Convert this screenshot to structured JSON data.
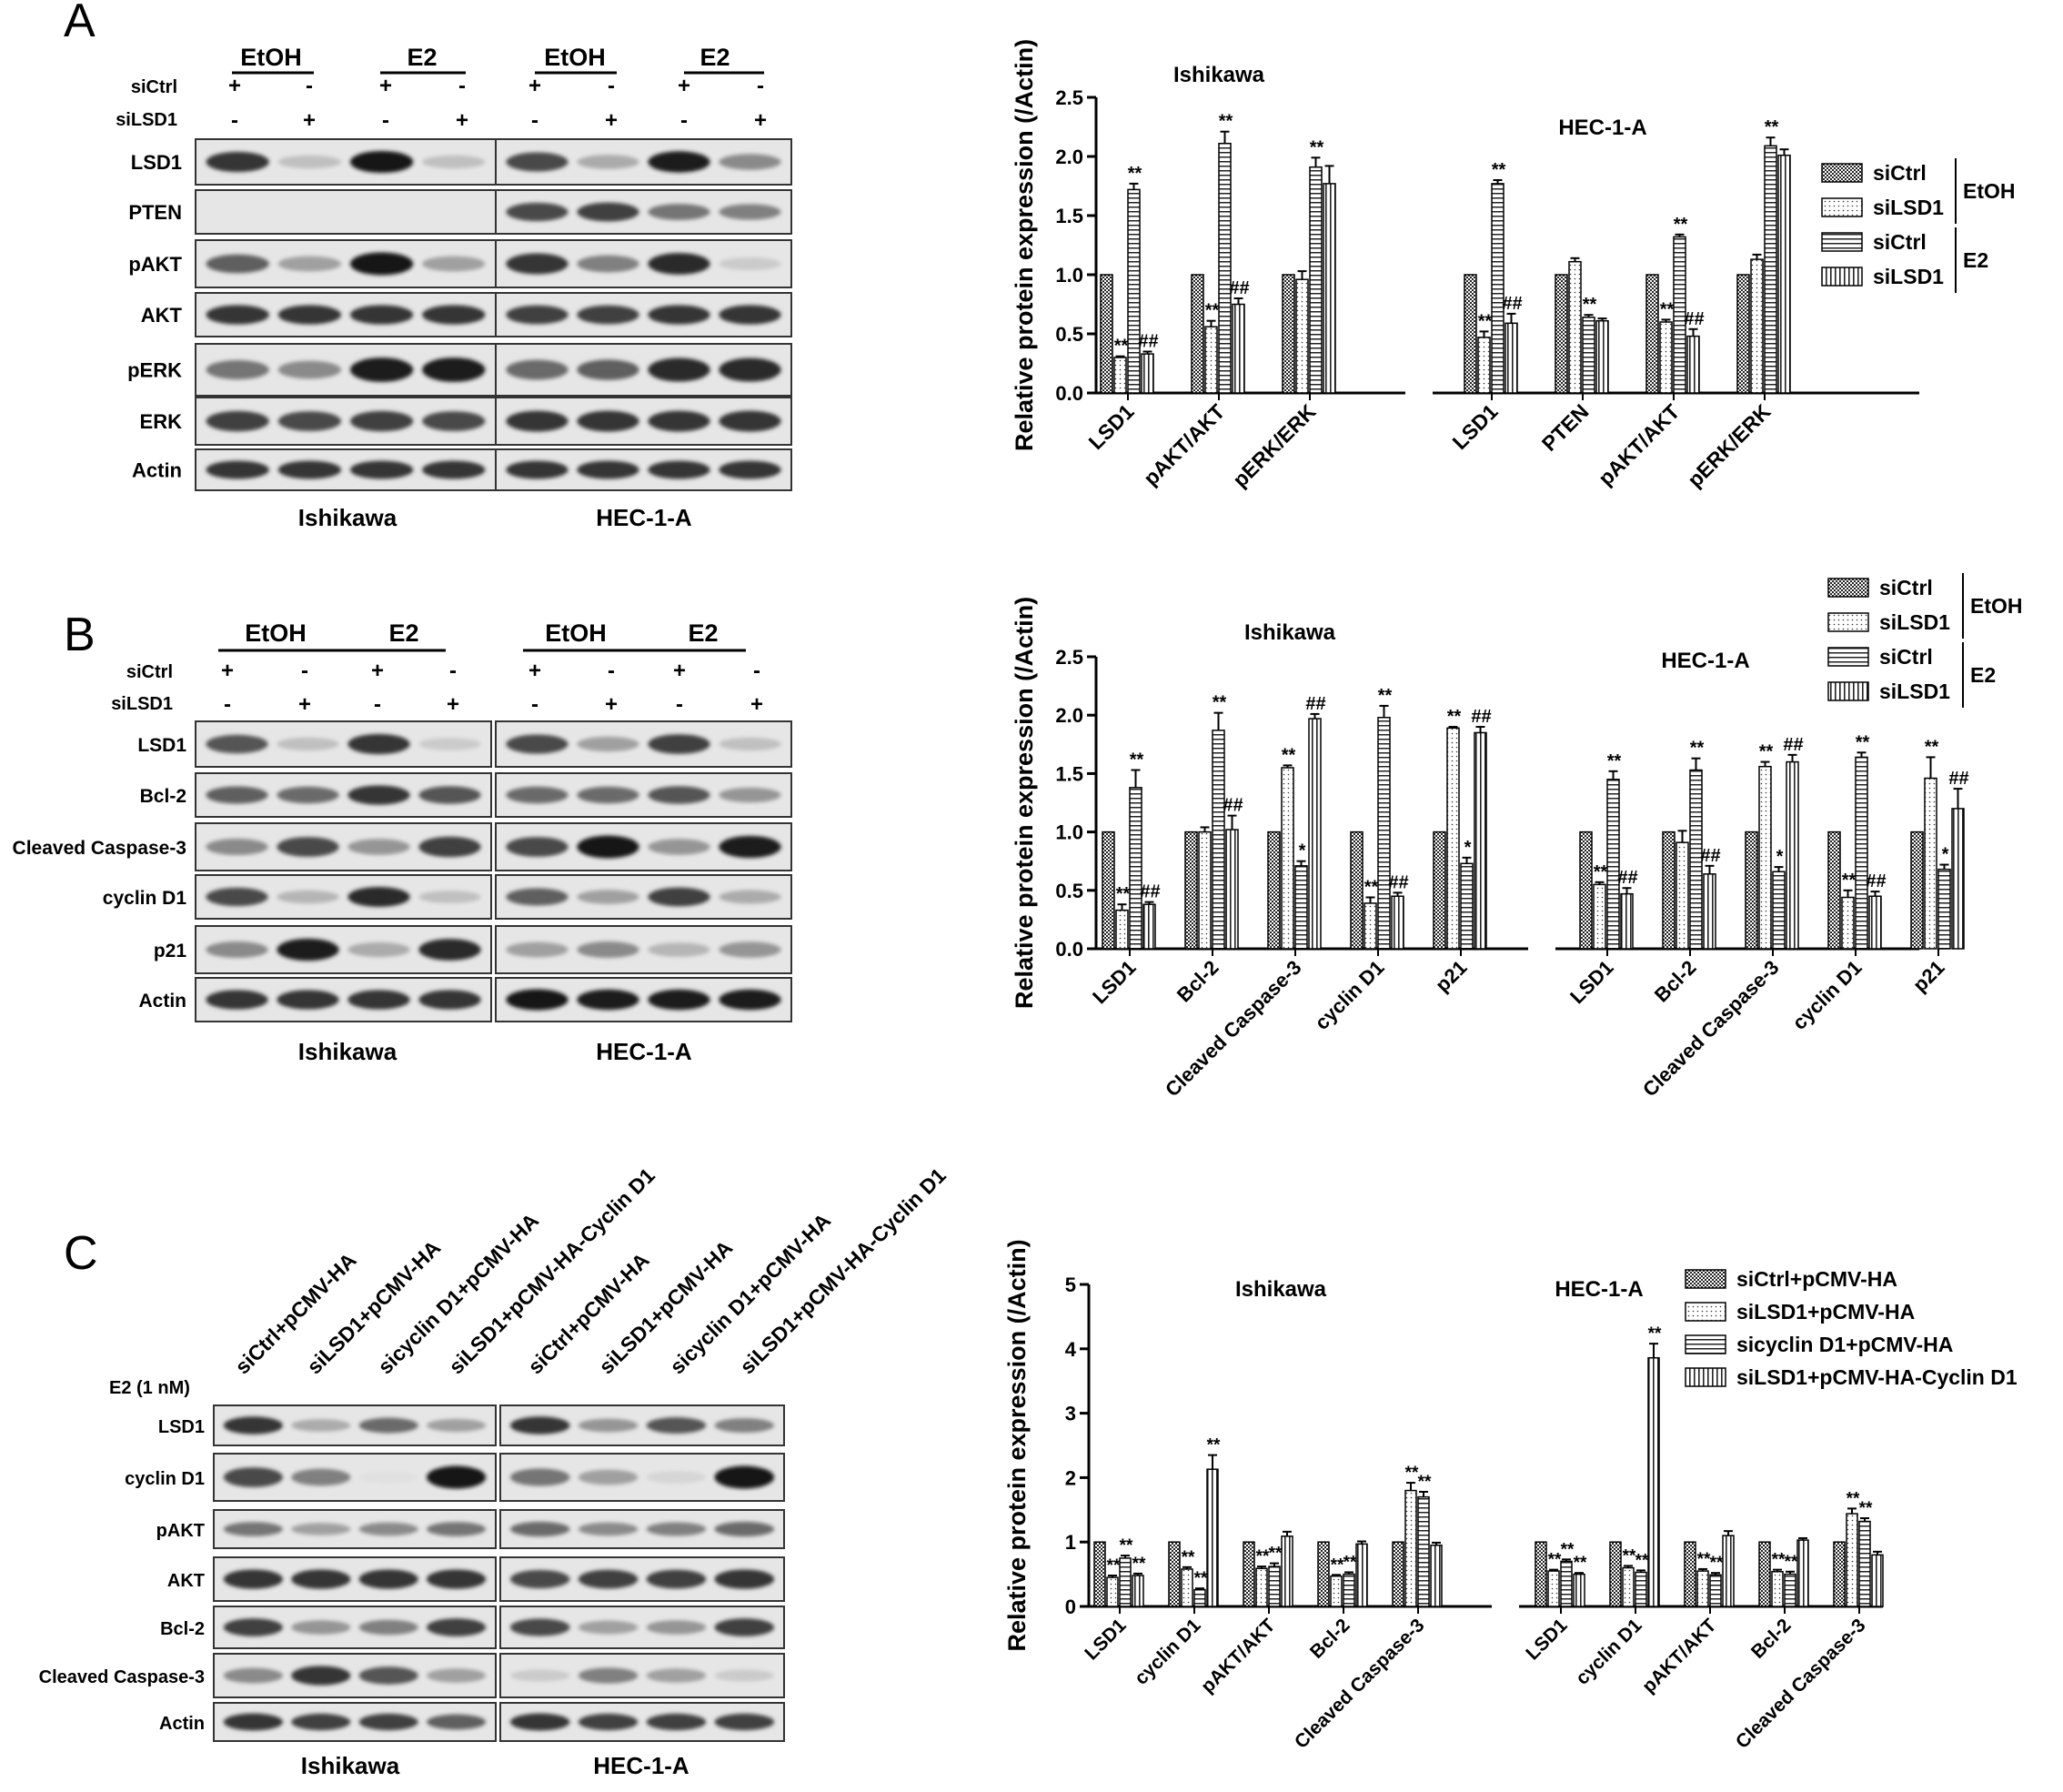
{
  "panel_labels": [
    "A",
    "B",
    "C"
  ],
  "blots": {
    "A": {
      "treat_labels": [
        "EtOH",
        "E2",
        "EtOH",
        "E2"
      ],
      "row_labels": [
        "siCtrl",
        "siLSD1"
      ],
      "signs": [
        [
          "+",
          "-",
          "+",
          "-"
        ],
        [
          "-",
          "+",
          "-",
          "+"
        ]
      ],
      "proteins": [
        "LSD1",
        "PTEN",
        "pAKT",
        "AKT",
        "pERK",
        "ERK",
        "Actin"
      ],
      "cells": [
        "Ishikawa",
        "HEC-1-A"
      ]
    },
    "B": {
      "treat_labels": [
        "EtOH",
        "E2",
        "EtOH",
        "E2"
      ],
      "row_labels": [
        "siCtrl",
        "siLSD1"
      ],
      "signs": [
        [
          "+",
          "-",
          "+",
          "-"
        ],
        [
          "-",
          "+",
          "-",
          "+"
        ]
      ],
      "proteins": [
        "LSD1",
        "Bcl-2",
        "Cleaved Caspase-3",
        "cyclin D1",
        "p21",
        "Actin"
      ],
      "cells": [
        "Ishikawa",
        "HEC-1-A"
      ]
    },
    "C": {
      "lane_labels": [
        "siCtrl+pCMV-HA",
        "siLSD1+pCMV-HA",
        "sicyclin D1+pCMV-HA",
        "siLSD1+pCMV-HA-Cyclin D1"
      ],
      "treatment": "E2 (1 nM)",
      "proteins": [
        "LSD1",
        "cyclin D1",
        "pAKT",
        "AKT",
        "Bcl-2",
        "Cleaved Caspase-3",
        "Actin"
      ],
      "cells": [
        "Ishikawa",
        "HEC-1-A"
      ]
    }
  },
  "chart_data": [
    {
      "type": "bar",
      "panel": "A",
      "ylabel": "Relative protein expression (/Actin)",
      "ylim": [
        0,
        2.5
      ],
      "yticks": [
        "0.0",
        "0.5",
        "1.0",
        "1.5",
        "2.0",
        "2.5"
      ],
      "group_titles": [
        "Ishikawa",
        "HEC-1-A"
      ],
      "legend": {
        "series": [
          "siCtrl",
          "siLSD1",
          "siCtrl",
          "siLSD1"
        ],
        "brackets": [
          "EtOH",
          "E2"
        ]
      },
      "groups": [
        {
          "name": "Ishikawa",
          "categories": [
            "LSD1",
            "pAKT/AKT",
            "pERK/ERK"
          ],
          "values": [
            [
              1.0,
              0.3,
              1.72,
              0.33
            ],
            [
              1.0,
              0.56,
              2.11,
              0.75
            ],
            [
              1.0,
              0.96,
              1.91,
              1.77
            ]
          ],
          "errors": [
            [
              0,
              0.01,
              0.05,
              0.02
            ],
            [
              0,
              0.05,
              0.1,
              0.05
            ],
            [
              0,
              0.07,
              0.08,
              0.15
            ]
          ],
          "marks": [
            [
              "",
              "**",
              "**",
              "##"
            ],
            [
              "",
              "**",
              "**",
              "##"
            ],
            [
              "",
              "",
              "**",
              ""
            ]
          ]
        },
        {
          "name": "HEC-1-A",
          "categories": [
            "LSD1",
            "PTEN",
            "pAKT/AKT",
            "pERK/ERK"
          ],
          "values": [
            [
              1.0,
              0.47,
              1.77,
              0.59
            ],
            [
              1.0,
              1.11,
              0.64,
              0.61
            ],
            [
              1.0,
              0.6,
              1.32,
              0.48
            ],
            [
              1.0,
              1.13,
              2.09,
              2.01
            ]
          ],
          "errors": [
            [
              0,
              0.05,
              0.03,
              0.08
            ],
            [
              0,
              0.03,
              0.02,
              0.02
            ],
            [
              0,
              0.02,
              0.02,
              0.06
            ],
            [
              0,
              0.04,
              0.07,
              0.05
            ]
          ],
          "marks": [
            [
              "",
              "**",
              "**",
              "##"
            ],
            [
              "",
              "",
              "**",
              ""
            ],
            [
              "",
              "**",
              "**",
              "##"
            ],
            [
              "",
              "",
              "**",
              ""
            ]
          ]
        }
      ]
    },
    {
      "type": "bar",
      "panel": "B",
      "ylabel": "Relative protein expression (/Actin)",
      "ylim": [
        0,
        2.5
      ],
      "yticks": [
        "0.0",
        "0.5",
        "1.0",
        "1.5",
        "2.0",
        "2.5"
      ],
      "group_titles": [
        "Ishikawa",
        "HEC-1-A"
      ],
      "legend": {
        "series": [
          "siCtrl",
          "siLSD1",
          "siCtrl",
          "siLSD1"
        ],
        "brackets": [
          "EtOH",
          "E2"
        ]
      },
      "groups": [
        {
          "name": "Ishikawa",
          "categories": [
            "LSD1",
            "Bcl-2",
            "Cleaved Caspase-3",
            "cyclin D1",
            "p21"
          ],
          "values": [
            [
              1.0,
              0.33,
              1.38,
              0.38
            ],
            [
              1.0,
              1.0,
              1.87,
              1.02
            ],
            [
              1.0,
              1.55,
              0.71,
              1.97
            ],
            [
              1.0,
              0.39,
              1.98,
              0.45
            ],
            [
              1.0,
              1.89,
              0.73,
              1.85
            ]
          ],
          "errors": [
            [
              0,
              0.05,
              0.15,
              0.02
            ],
            [
              0,
              0.04,
              0.15,
              0.12
            ],
            [
              0,
              0.02,
              0.04,
              0.04
            ],
            [
              0,
              0.05,
              0.1,
              0.03
            ],
            [
              0,
              0.01,
              0.05,
              0.05
            ]
          ],
          "marks": [
            [
              "",
              "**",
              "**",
              "##"
            ],
            [
              "",
              "",
              "**",
              "##"
            ],
            [
              "",
              "**",
              "*",
              "##"
            ],
            [
              "",
              "**",
              "**",
              "##"
            ],
            [
              "",
              "**",
              "*",
              "##"
            ]
          ]
        },
        {
          "name": "HEC-1-A",
          "categories": [
            "LSD1",
            "Bcl-2",
            "Cleaved Caspase-3",
            "cyclin D1",
            "p21"
          ],
          "values": [
            [
              1.0,
              0.55,
              1.45,
              0.47
            ],
            [
              1.0,
              0.91,
              1.53,
              0.64
            ],
            [
              1.0,
              1.56,
              0.66,
              1.6
            ],
            [
              1.0,
              0.44,
              1.64,
              0.45
            ],
            [
              1.0,
              1.46,
              0.68,
              1.2
            ]
          ],
          "errors": [
            [
              0,
              0.02,
              0.07,
              0.05
            ],
            [
              0,
              0.1,
              0.1,
              0.07
            ],
            [
              0,
              0.04,
              0.04,
              0.06
            ],
            [
              0,
              0.06,
              0.04,
              0.04
            ],
            [
              0,
              0.18,
              0.04,
              0.17
            ]
          ],
          "marks": [
            [
              "",
              "**",
              "**",
              "##"
            ],
            [
              "",
              "",
              "**",
              "##"
            ],
            [
              "",
              "**",
              "*",
              "##"
            ],
            [
              "",
              "**",
              "**",
              "##"
            ],
            [
              "",
              "**",
              "*",
              "##"
            ]
          ]
        }
      ]
    },
    {
      "type": "bar",
      "panel": "C",
      "ylabel": "Relative protein expression (/Actin)",
      "ylim": [
        0,
        5
      ],
      "yticks": [
        "0",
        "1",
        "2",
        "3",
        "4",
        "5"
      ],
      "group_titles": [
        "Ishikawa",
        "HEC-1-A"
      ],
      "legend": {
        "series": [
          "siCtrl+pCMV-HA",
          "siLSD1+pCMV-HA",
          "sicyclin D1+pCMV-HA",
          "siLSD1+pCMV-HA-Cyclin D1"
        ],
        "brackets": []
      },
      "groups": [
        {
          "name": "Ishikawa",
          "categories": [
            "LSD1",
            "cyclin D1",
            "pAKT/AKT",
            "Bcl-2",
            "Cleaved Caspase-3"
          ],
          "values": [
            [
              1.0,
              0.45,
              0.75,
              0.48
            ],
            [
              1.0,
              0.58,
              0.26,
              2.13
            ],
            [
              1.0,
              0.59,
              0.62,
              1.09
            ],
            [
              1.0,
              0.47,
              0.5,
              0.97
            ],
            [
              1.0,
              1.8,
              1.7,
              0.95
            ]
          ],
          "errors": [
            [
              0,
              0.03,
              0.04,
              0.03
            ],
            [
              0,
              0.03,
              0.02,
              0.22
            ],
            [
              0,
              0.03,
              0.05,
              0.07
            ],
            [
              0,
              0.02,
              0.03,
              0.04
            ],
            [
              0,
              0.12,
              0.08,
              0.04
            ]
          ],
          "marks": [
            [
              "",
              "**",
              "**",
              "**"
            ],
            [
              "",
              "**",
              "**",
              "**"
            ],
            [
              "",
              "**",
              "**",
              ""
            ],
            [
              "",
              "**",
              "**",
              ""
            ],
            [
              "",
              "**",
              "**",
              ""
            ]
          ]
        },
        {
          "name": "HEC-1-A",
          "categories": [
            "LSD1",
            "cyclin D1",
            "pAKT/AKT",
            "Bcl-2",
            "Cleaved Caspase-3"
          ],
          "values": [
            [
              1.0,
              0.55,
              0.7,
              0.5
            ],
            [
              1.0,
              0.6,
              0.53,
              3.86
            ],
            [
              1.0,
              0.55,
              0.49,
              1.1
            ],
            [
              1.0,
              0.54,
              0.5,
              1.03
            ],
            [
              1.0,
              1.44,
              1.32,
              0.8
            ]
          ],
          "errors": [
            [
              0,
              0.02,
              0.03,
              0.02
            ],
            [
              0,
              0.03,
              0.03,
              0.22
            ],
            [
              0,
              0.03,
              0.03,
              0.07
            ],
            [
              0,
              0.03,
              0.04,
              0.03
            ],
            [
              0,
              0.08,
              0.05,
              0.05
            ]
          ],
          "marks": [
            [
              "",
              "**",
              "**",
              "**"
            ],
            [
              "",
              "**",
              "**",
              "**"
            ],
            [
              "",
              "**",
              "**",
              ""
            ],
            [
              "",
              "**",
              "**",
              ""
            ],
            [
              "",
              "**",
              "**",
              ""
            ]
          ]
        }
      ]
    }
  ]
}
